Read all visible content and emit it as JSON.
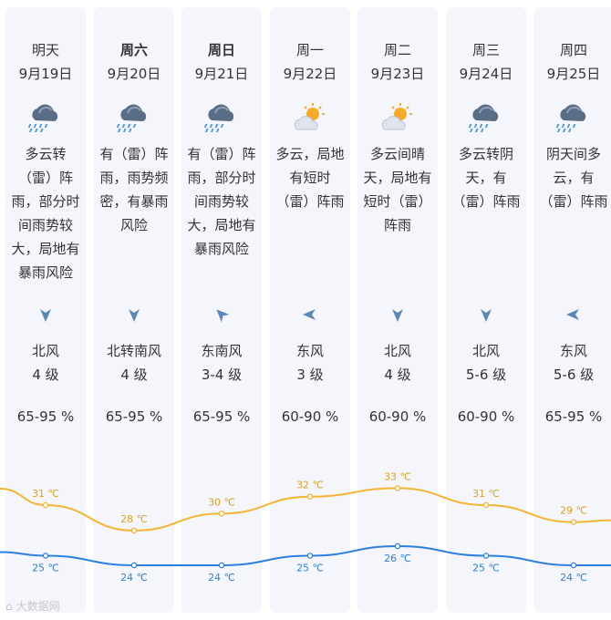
{
  "days": [
    {
      "name": "明天",
      "date": "9月19日",
      "bold": false,
      "icon": "thunder-rain-icon",
      "desc": [
        "多云转",
        "（雷）阵",
        "雨，部分时",
        "间雨势较",
        "大，局地有",
        "暴雨风险"
      ],
      "arrow_icon": "arrow-down-icon",
      "wind_dir": "北风",
      "wind_level": "4 级",
      "humidity": "65-95 %",
      "high": "31 ℃",
      "low": "25 ℃",
      "high_val": 31,
      "low_val": 25
    },
    {
      "name": "周六",
      "date": "9月20日",
      "bold": true,
      "icon": "thunder-rain-icon",
      "desc": [
        "有（雷）阵",
        "雨，雨势频",
        "密，有暴雨",
        "风险"
      ],
      "arrow_icon": "arrow-down-icon",
      "wind_dir": "北转南风",
      "wind_level": "4 级",
      "humidity": "65-95 %",
      "high": "28 ℃",
      "low": "24 ℃",
      "high_val": 28,
      "low_val": 24
    },
    {
      "name": "周日",
      "date": "9月21日",
      "bold": true,
      "icon": "thunder-rain-icon",
      "desc": [
        "有（雷）阵",
        "雨，部分时",
        "间雨势较",
        "大，局地有",
        "暴雨风险"
      ],
      "arrow_icon": "arrow-northwest-icon",
      "wind_dir": "东南风",
      "wind_level": "3-4 级",
      "humidity": "65-95 %",
      "high": "30 ℃",
      "low": "24 ℃",
      "high_val": 30,
      "low_val": 24
    },
    {
      "name": "周一",
      "date": "9月22日",
      "bold": false,
      "icon": "partly-cloudy-icon",
      "desc": [
        "多云，局地",
        "有短时",
        "（雷）阵雨"
      ],
      "arrow_icon": "arrow-left-icon",
      "wind_dir": "东风",
      "wind_level": "3 级",
      "humidity": "60-90 %",
      "high": "32 ℃",
      "low": "25 ℃",
      "high_val": 32,
      "low_val": 25
    },
    {
      "name": "周二",
      "date": "9月23日",
      "bold": false,
      "icon": "partly-cloudy-icon",
      "desc": [
        "多云间晴",
        "天，局地有",
        "短时（雷）",
        "阵雨"
      ],
      "arrow_icon": "arrow-down-icon",
      "wind_dir": "北风",
      "wind_level": "4 级",
      "humidity": "60-90 %",
      "high": "33 ℃",
      "low": "26 ℃",
      "high_val": 33,
      "low_val": 26
    },
    {
      "name": "周三",
      "date": "9月24日",
      "bold": false,
      "icon": "thunder-rain-icon",
      "desc": [
        "多云转阴",
        "天，有",
        "（雷）阵雨"
      ],
      "arrow_icon": "arrow-down-icon",
      "wind_dir": "北风",
      "wind_level": "5-6 级",
      "humidity": "60-90 %",
      "high": "31 ℃",
      "low": "25 ℃",
      "high_val": 31,
      "low_val": 25
    },
    {
      "name": "周四",
      "date": "9月25日",
      "bold": false,
      "icon": "thunder-rain-icon",
      "desc": [
        "阴天间多",
        "云，有",
        "（雷）阵雨"
      ],
      "arrow_icon": "arrow-left-icon",
      "wind_dir": "东风",
      "wind_level": "5-6 级",
      "humidity": "65-95 %",
      "high": "29 ℃",
      "low": "24 ℃",
      "high_val": 29,
      "low_val": 24
    }
  ],
  "colors": {
    "high_line": "#f5b431",
    "low_line": "#2d7fe0",
    "high_text": "#e0a020",
    "low_text": "#2d7fe0",
    "arrow": "#5b87b8"
  },
  "watermark": "大数据网"
}
